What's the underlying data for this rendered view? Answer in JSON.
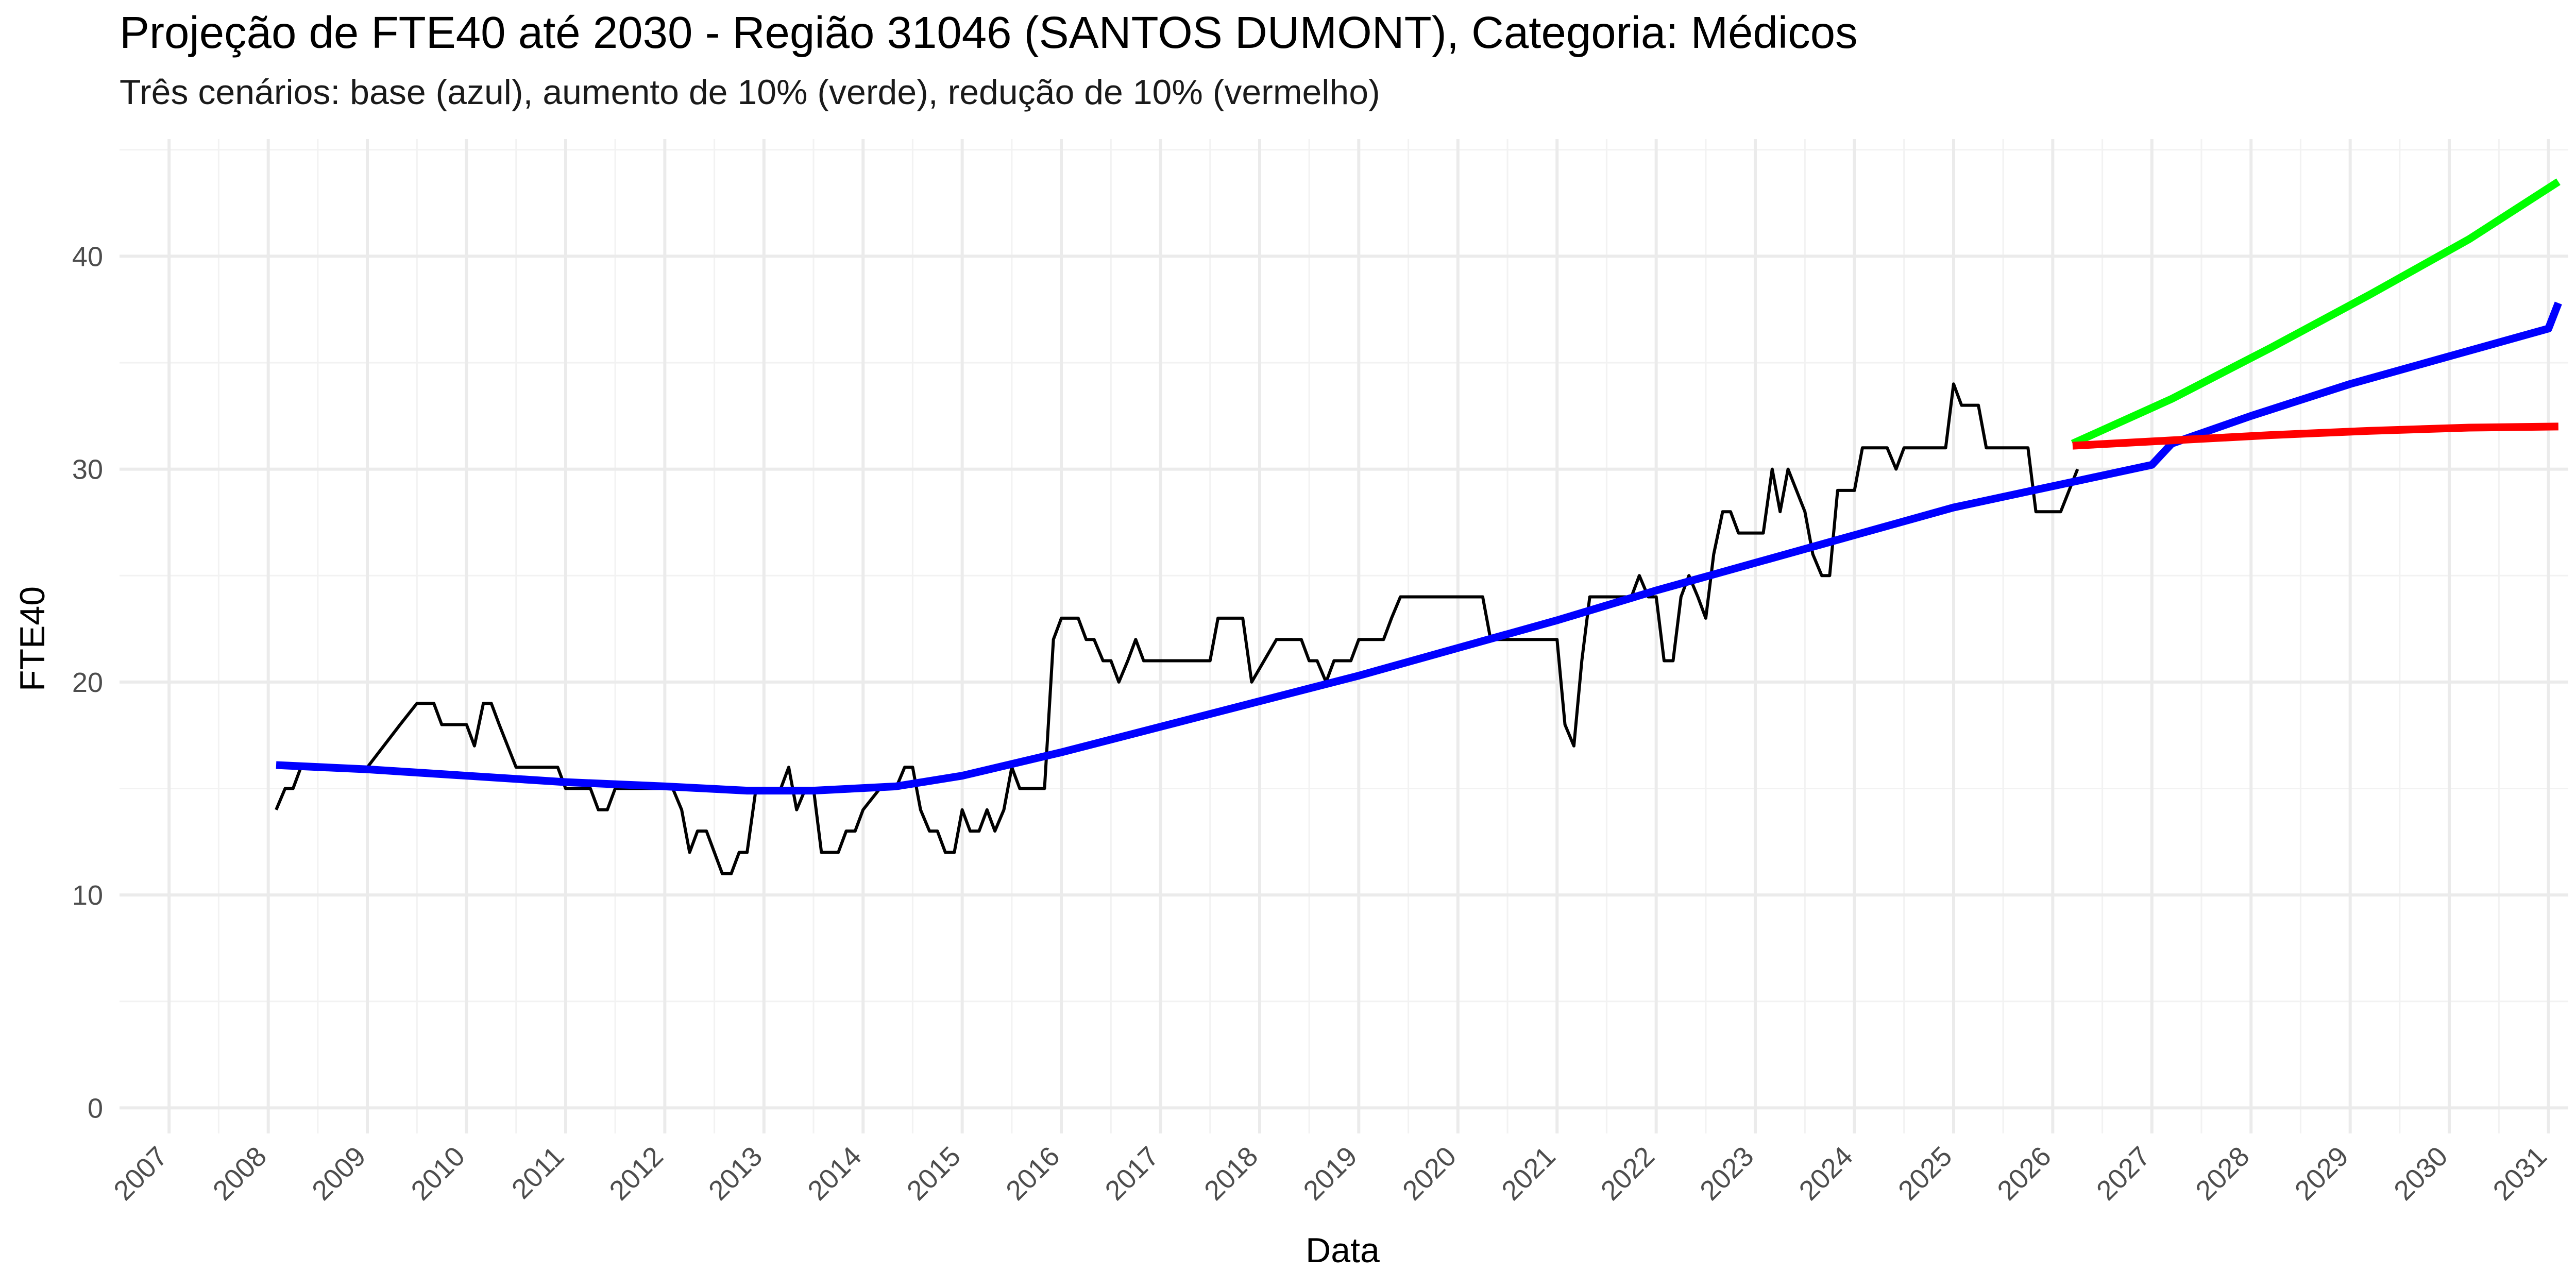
{
  "chart_data": {
    "type": "line",
    "title": "Projeção de FTE40 até 2030 - Região 31046 (SANTOS DUMONT), Categoria: Médicos",
    "subtitle": "Três cenários: base (azul), aumento de 10% (verde), redução de 10% (vermelho)",
    "xlabel": "Data",
    "ylabel": "FTE40",
    "xlim": [
      2006.5,
      2031.2
    ],
    "ylim": [
      -1.2,
      45.5
    ],
    "x_ticks": [
      "2007",
      "2008",
      "2009",
      "2010",
      "2011",
      "2012",
      "2013",
      "2014",
      "2015",
      "2016",
      "2017",
      "2018",
      "2019",
      "2020",
      "2021",
      "2022",
      "2023",
      "2024",
      "2025",
      "2026",
      "2027",
      "2028",
      "2029",
      "2030",
      "2031"
    ],
    "y_ticks": [
      0,
      10,
      20,
      30,
      40
    ],
    "grid": true,
    "series": [
      {
        "color": "#000000",
        "points": [
          [
            2008.08,
            14
          ],
          [
            2008.17,
            15
          ],
          [
            2008.25,
            15
          ],
          [
            2008.33,
            16
          ],
          [
            2009.0,
            16
          ],
          [
            2009.33,
            18
          ],
          [
            2009.5,
            19
          ],
          [
            2009.67,
            19
          ],
          [
            2009.75,
            18
          ],
          [
            2010.0,
            18
          ],
          [
            2010.08,
            17
          ],
          [
            2010.17,
            19
          ],
          [
            2010.25,
            19
          ],
          [
            2010.33,
            18
          ],
          [
            2010.5,
            16
          ],
          [
            2010.75,
            16
          ],
          [
            2010.92,
            16
          ],
          [
            2011.0,
            15
          ],
          [
            2011.25,
            15
          ],
          [
            2011.33,
            14
          ],
          [
            2011.42,
            14
          ],
          [
            2011.5,
            15
          ],
          [
            2011.83,
            15
          ],
          [
            2012.08,
            15
          ],
          [
            2012.17,
            14
          ],
          [
            2012.25,
            12
          ],
          [
            2012.33,
            13
          ],
          [
            2012.42,
            13
          ],
          [
            2012.58,
            11
          ],
          [
            2012.67,
            11
          ],
          [
            2012.75,
            12
          ],
          [
            2012.83,
            12
          ],
          [
            2012.92,
            15
          ],
          [
            2013.17,
            15
          ],
          [
            2013.25,
            16
          ],
          [
            2013.33,
            14
          ],
          [
            2013.42,
            15
          ],
          [
            2013.5,
            15
          ],
          [
            2013.58,
            12
          ],
          [
            2013.75,
            12
          ],
          [
            2013.83,
            13
          ],
          [
            2013.92,
            13
          ],
          [
            2014.0,
            14
          ],
          [
            2014.17,
            15
          ],
          [
            2014.33,
            15
          ],
          [
            2014.42,
            16
          ],
          [
            2014.5,
            16
          ],
          [
            2014.58,
            14
          ],
          [
            2014.67,
            13
          ],
          [
            2014.75,
            13
          ],
          [
            2014.83,
            12
          ],
          [
            2014.92,
            12
          ],
          [
            2015.0,
            14
          ],
          [
            2015.08,
            13
          ],
          [
            2015.17,
            13
          ],
          [
            2015.25,
            14
          ],
          [
            2015.33,
            13
          ],
          [
            2015.42,
            14
          ],
          [
            2015.5,
            16
          ],
          [
            2015.58,
            15
          ],
          [
            2015.83,
            15
          ],
          [
            2015.92,
            22
          ],
          [
            2016.0,
            23
          ],
          [
            2016.17,
            23
          ],
          [
            2016.25,
            22
          ],
          [
            2016.33,
            22
          ],
          [
            2016.42,
            21
          ],
          [
            2016.5,
            21
          ],
          [
            2016.58,
            20
          ],
          [
            2016.67,
            21
          ],
          [
            2016.75,
            22
          ],
          [
            2016.83,
            21
          ],
          [
            2017.5,
            21
          ],
          [
            2017.58,
            23
          ],
          [
            2017.83,
            23
          ],
          [
            2017.92,
            20
          ],
          [
            2018.17,
            22
          ],
          [
            2018.42,
            22
          ],
          [
            2018.5,
            21
          ],
          [
            2018.58,
            21
          ],
          [
            2018.67,
            20
          ],
          [
            2018.75,
            21
          ],
          [
            2018.92,
            21
          ],
          [
            2019.0,
            22
          ],
          [
            2019.25,
            22
          ],
          [
            2019.33,
            23
          ],
          [
            2019.42,
            24
          ],
          [
            2020.25,
            24
          ],
          [
            2020.33,
            22
          ],
          [
            2021.0,
            22
          ],
          [
            2021.08,
            18
          ],
          [
            2021.17,
            17
          ],
          [
            2021.25,
            21
          ],
          [
            2021.33,
            24
          ],
          [
            2021.75,
            24
          ],
          [
            2021.83,
            25
          ],
          [
            2021.92,
            24
          ],
          [
            2022.0,
            24
          ],
          [
            2022.08,
            21
          ],
          [
            2022.17,
            21
          ],
          [
            2022.25,
            24
          ],
          [
            2022.33,
            25
          ],
          [
            2022.42,
            24
          ],
          [
            2022.5,
            23
          ],
          [
            2022.58,
            26
          ],
          [
            2022.67,
            28
          ],
          [
            2022.75,
            28
          ],
          [
            2022.83,
            27
          ],
          [
            2022.92,
            27
          ],
          [
            2023.08,
            27
          ],
          [
            2023.17,
            30
          ],
          [
            2023.25,
            28
          ],
          [
            2023.33,
            30
          ],
          [
            2023.5,
            28
          ],
          [
            2023.58,
            26
          ],
          [
            2023.67,
            25
          ],
          [
            2023.75,
            25
          ],
          [
            2023.83,
            29
          ],
          [
            2024.0,
            29
          ],
          [
            2024.08,
            31
          ],
          [
            2024.33,
            31
          ],
          [
            2024.42,
            30
          ],
          [
            2024.5,
            31
          ],
          [
            2024.92,
            31
          ],
          [
            2025.0,
            34
          ],
          [
            2025.08,
            33
          ],
          [
            2025.25,
            33
          ],
          [
            2025.33,
            31
          ],
          [
            2025.75,
            31
          ],
          [
            2025.83,
            28
          ],
          [
            2026.08,
            28
          ],
          [
            2026.25,
            30
          ]
        ]
      },
      {
        "color": "#0000ff",
        "points": [
          [
            2008.08,
            16.1
          ],
          [
            2009.0,
            15.9
          ],
          [
            2010.0,
            15.6
          ],
          [
            2011.0,
            15.3
          ],
          [
            2012.0,
            15.1
          ],
          [
            2012.83,
            14.9
          ],
          [
            2013.5,
            14.9
          ],
          [
            2014.33,
            15.1
          ],
          [
            2015.0,
            15.6
          ],
          [
            2016.0,
            16.7
          ],
          [
            2017.0,
            17.9
          ],
          [
            2018.0,
            19.1
          ],
          [
            2019.0,
            20.3
          ],
          [
            2020.0,
            21.6
          ],
          [
            2021.0,
            22.9
          ],
          [
            2022.0,
            24.3
          ],
          [
            2023.0,
            25.6
          ],
          [
            2024.0,
            26.9
          ],
          [
            2025.0,
            28.2
          ],
          [
            2026.2,
            29.4
          ],
          [
            2027.0,
            30.2
          ],
          [
            2027.2,
            31.2
          ],
          [
            2028.0,
            32.5
          ],
          [
            2029.0,
            34.0
          ],
          [
            2030.0,
            35.3
          ],
          [
            2031.0,
            36.6
          ],
          [
            2031.1,
            37.8
          ]
        ]
      },
      {
        "color": "#00ff00",
        "points": [
          [
            2026.2,
            31.2
          ],
          [
            2027.2,
            33.3
          ],
          [
            2028.2,
            35.7
          ],
          [
            2029.2,
            38.2
          ],
          [
            2030.2,
            40.8
          ],
          [
            2031.1,
            43.5
          ]
        ]
      },
      {
        "color": "#ff0000",
        "points": [
          [
            2026.2,
            31.1
          ],
          [
            2027.2,
            31.35
          ],
          [
            2028.2,
            31.6
          ],
          [
            2029.2,
            31.8
          ],
          [
            2030.2,
            31.95
          ],
          [
            2031.1,
            32.0
          ]
        ]
      }
    ]
  }
}
